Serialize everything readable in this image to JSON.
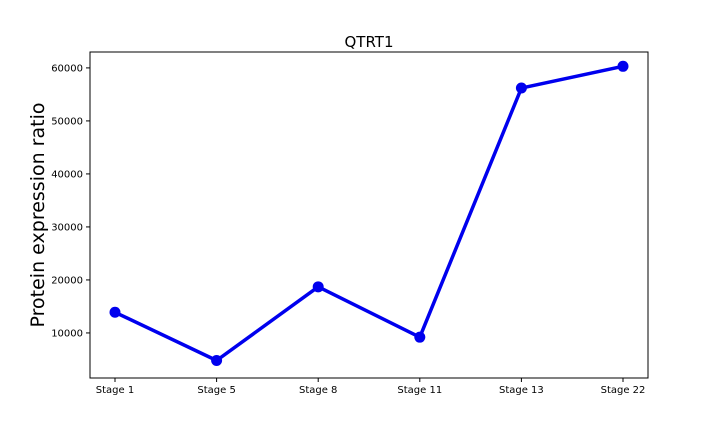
{
  "chart_data": {
    "type": "line",
    "title": "QTRT1",
    "xlabel": "",
    "ylabel": "Protein expression ratio",
    "categories": [
      "Stage 1",
      "Stage 5",
      "Stage 8",
      "Stage 11",
      "Stage 13",
      "Stage 22"
    ],
    "series": [
      {
        "values": [
          13900,
          4800,
          18700,
          9200,
          56200,
          60300
        ],
        "color": "#0000ee"
      }
    ],
    "ylim": [
      1500,
      63000
    ],
    "yticks": [
      10000,
      20000,
      30000,
      40000,
      50000,
      60000
    ],
    "ytick_labels": [
      "10000",
      "20000",
      "30000",
      "40000",
      "50000",
      "60000"
    ],
    "grid": false,
    "legend": "none"
  }
}
